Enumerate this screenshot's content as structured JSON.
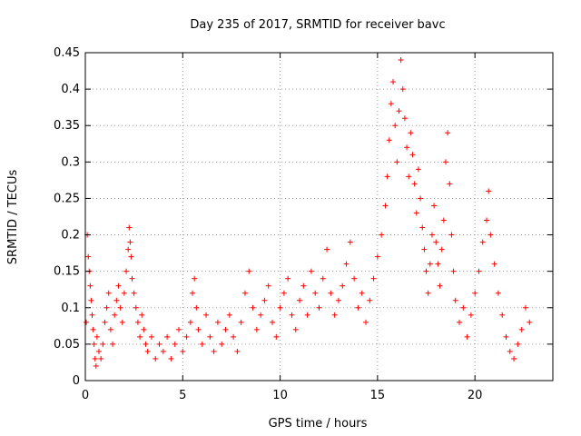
{
  "chart_data": {
    "type": "scatter",
    "title": "Day 235 of 2017, SRMTID for receiver bavc",
    "xlabel": "GPS time / hours",
    "ylabel": "SRMTID / TECUs",
    "xlim": [
      0,
      24
    ],
    "ylim": [
      0,
      0.45
    ],
    "xticks": [
      0,
      5,
      10,
      15,
      20
    ],
    "xtick_labels": [
      "0",
      "5",
      "10",
      "15",
      "20"
    ],
    "yticks": [
      0,
      0.05,
      0.1,
      0.15,
      0.2,
      0.25,
      0.3,
      0.35,
      0.4,
      0.45
    ],
    "ytick_labels": [
      "0",
      "0.05",
      "0.1",
      "0.15",
      "0.2",
      "0.25",
      "0.3",
      "0.35",
      "0.4",
      "0.45"
    ],
    "grid": true,
    "marker": "plus",
    "color": "#ff0000",
    "series": [
      {
        "name": "SRMTID",
        "points": [
          [
            0.05,
            0.08
          ],
          [
            0.1,
            0.2
          ],
          [
            0.15,
            0.17
          ],
          [
            0.2,
            0.15
          ],
          [
            0.25,
            0.13
          ],
          [
            0.3,
            0.11
          ],
          [
            0.35,
            0.09
          ],
          [
            0.4,
            0.07
          ],
          [
            0.45,
            0.05
          ],
          [
            0.5,
            0.03
          ],
          [
            0.55,
            0.02
          ],
          [
            0.6,
            0.06
          ],
          [
            0.7,
            0.04
          ],
          [
            0.8,
            0.03
          ],
          [
            0.9,
            0.05
          ],
          [
            1.0,
            0.08
          ],
          [
            1.1,
            0.1
          ],
          [
            1.2,
            0.12
          ],
          [
            1.3,
            0.07
          ],
          [
            1.4,
            0.05
          ],
          [
            1.5,
            0.09
          ],
          [
            1.6,
            0.11
          ],
          [
            1.7,
            0.13
          ],
          [
            1.8,
            0.1
          ],
          [
            1.9,
            0.08
          ],
          [
            2.0,
            0.12
          ],
          [
            2.1,
            0.15
          ],
          [
            2.2,
            0.18
          ],
          [
            2.25,
            0.21
          ],
          [
            2.3,
            0.19
          ],
          [
            2.35,
            0.17
          ],
          [
            2.4,
            0.14
          ],
          [
            2.5,
            0.12
          ],
          [
            2.6,
            0.1
          ],
          [
            2.7,
            0.08
          ],
          [
            2.8,
            0.06
          ],
          [
            2.9,
            0.09
          ],
          [
            3.0,
            0.07
          ],
          [
            3.1,
            0.05
          ],
          [
            3.2,
            0.04
          ],
          [
            3.4,
            0.06
          ],
          [
            3.6,
            0.03
          ],
          [
            3.8,
            0.05
          ],
          [
            4.0,
            0.04
          ],
          [
            4.2,
            0.06
          ],
          [
            4.4,
            0.03
          ],
          [
            4.6,
            0.05
          ],
          [
            4.8,
            0.07
          ],
          [
            5.0,
            0.04
          ],
          [
            5.2,
            0.06
          ],
          [
            5.4,
            0.08
          ],
          [
            5.5,
            0.12
          ],
          [
            5.6,
            0.14
          ],
          [
            5.7,
            0.1
          ],
          [
            5.8,
            0.07
          ],
          [
            6.0,
            0.05
          ],
          [
            6.2,
            0.09
          ],
          [
            6.4,
            0.06
          ],
          [
            6.6,
            0.04
          ],
          [
            6.8,
            0.08
          ],
          [
            7.0,
            0.05
          ],
          [
            7.2,
            0.07
          ],
          [
            7.4,
            0.09
          ],
          [
            7.6,
            0.06
          ],
          [
            7.8,
            0.04
          ],
          [
            8.0,
            0.08
          ],
          [
            8.2,
            0.12
          ],
          [
            8.4,
            0.15
          ],
          [
            8.6,
            0.1
          ],
          [
            8.8,
            0.07
          ],
          [
            9.0,
            0.09
          ],
          [
            9.2,
            0.11
          ],
          [
            9.4,
            0.13
          ],
          [
            9.6,
            0.08
          ],
          [
            9.8,
            0.06
          ],
          [
            10.0,
            0.1
          ],
          [
            10.2,
            0.12
          ],
          [
            10.4,
            0.14
          ],
          [
            10.6,
            0.09
          ],
          [
            10.8,
            0.07
          ],
          [
            11.0,
            0.11
          ],
          [
            11.2,
            0.13
          ],
          [
            11.4,
            0.09
          ],
          [
            11.6,
            0.15
          ],
          [
            11.8,
            0.12
          ],
          [
            12.0,
            0.1
          ],
          [
            12.2,
            0.14
          ],
          [
            12.4,
            0.18
          ],
          [
            12.6,
            0.12
          ],
          [
            12.8,
            0.09
          ],
          [
            13.0,
            0.11
          ],
          [
            13.2,
            0.13
          ],
          [
            13.4,
            0.16
          ],
          [
            13.6,
            0.19
          ],
          [
            13.8,
            0.14
          ],
          [
            14.0,
            0.1
          ],
          [
            14.2,
            0.12
          ],
          [
            14.4,
            0.08
          ],
          [
            14.6,
            0.11
          ],
          [
            14.8,
            0.14
          ],
          [
            15.0,
            0.17
          ],
          [
            15.2,
            0.2
          ],
          [
            15.4,
            0.24
          ],
          [
            15.5,
            0.28
          ],
          [
            15.6,
            0.33
          ],
          [
            15.7,
            0.38
          ],
          [
            15.8,
            0.41
          ],
          [
            15.9,
            0.35
          ],
          [
            16.0,
            0.3
          ],
          [
            16.1,
            0.37
          ],
          [
            16.2,
            0.44
          ],
          [
            16.3,
            0.4
          ],
          [
            16.4,
            0.36
          ],
          [
            16.5,
            0.32
          ],
          [
            16.6,
            0.28
          ],
          [
            16.7,
            0.34
          ],
          [
            16.8,
            0.31
          ],
          [
            16.9,
            0.27
          ],
          [
            17.0,
            0.23
          ],
          [
            17.1,
            0.29
          ],
          [
            17.2,
            0.25
          ],
          [
            17.3,
            0.21
          ],
          [
            17.4,
            0.18
          ],
          [
            17.5,
            0.15
          ],
          [
            17.6,
            0.12
          ],
          [
            17.7,
            0.16
          ],
          [
            17.8,
            0.2
          ],
          [
            17.9,
            0.24
          ],
          [
            18.0,
            0.19
          ],
          [
            18.1,
            0.16
          ],
          [
            18.2,
            0.13
          ],
          [
            18.3,
            0.18
          ],
          [
            18.4,
            0.22
          ],
          [
            18.5,
            0.3
          ],
          [
            18.6,
            0.34
          ],
          [
            18.7,
            0.27
          ],
          [
            18.8,
            0.2
          ],
          [
            18.9,
            0.15
          ],
          [
            19.0,
            0.11
          ],
          [
            19.2,
            0.08
          ],
          [
            19.4,
            0.1
          ],
          [
            19.6,
            0.06
          ],
          [
            19.8,
            0.09
          ],
          [
            20.0,
            0.12
          ],
          [
            20.2,
            0.15
          ],
          [
            20.4,
            0.19
          ],
          [
            20.6,
            0.22
          ],
          [
            20.7,
            0.26
          ],
          [
            20.8,
            0.2
          ],
          [
            21.0,
            0.16
          ],
          [
            21.2,
            0.12
          ],
          [
            21.4,
            0.09
          ],
          [
            21.6,
            0.06
          ],
          [
            21.8,
            0.04
          ],
          [
            22.0,
            0.03
          ],
          [
            22.2,
            0.05
          ],
          [
            22.4,
            0.07
          ],
          [
            22.6,
            0.1
          ],
          [
            22.8,
            0.08
          ]
        ]
      }
    ]
  }
}
